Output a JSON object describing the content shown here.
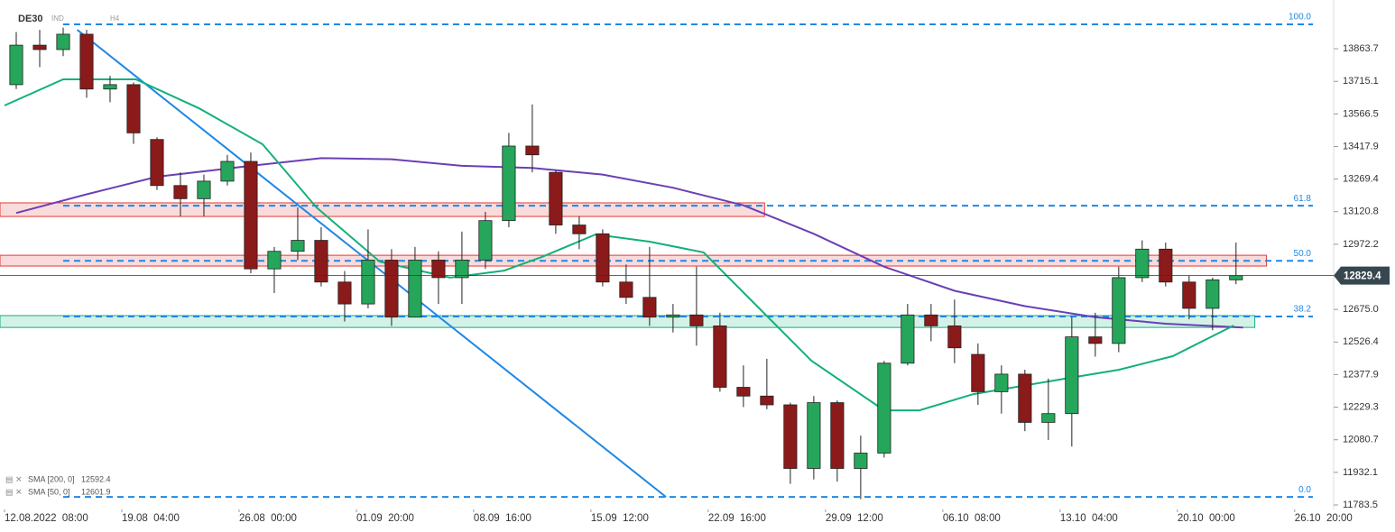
{
  "header": {
    "symbol": "DE30",
    "market": "IND",
    "interval": "H4"
  },
  "chart_data": {
    "type": "candlestick",
    "x": [
      0,
      1,
      2,
      3,
      4,
      5,
      6,
      7,
      8,
      9,
      10,
      11,
      12,
      13,
      14,
      15,
      16,
      17,
      18,
      19,
      20,
      21,
      22,
      23,
      24,
      25,
      26,
      27,
      28,
      29,
      30,
      31,
      32,
      33,
      34,
      35,
      36,
      37,
      38,
      39,
      40,
      41,
      42,
      43,
      44,
      45,
      46,
      47,
      48,
      49,
      50,
      51,
      52
    ],
    "open": [
      13700,
      13880,
      13860,
      13930,
      13680,
      13700,
      13450,
      13240,
      13180,
      13260,
      13350,
      12860,
      12940,
      12990,
      12800,
      12700,
      12900,
      12640,
      12900,
      12820,
      12900,
      13080,
      13420,
      13300,
      13060,
      13020,
      12800,
      12730,
      12640,
      12650,
      12600,
      12320,
      12280,
      12240,
      11950,
      12250,
      11950,
      12020,
      12430,
      12650,
      12600,
      12470,
      12300,
      12380,
      12160,
      12200,
      12550,
      12520,
      12820,
      12950,
      12800,
      12680,
      12810
    ],
    "high": [
      13940,
      13950,
      13960,
      13950,
      13740,
      13710,
      13460,
      13300,
      13290,
      13380,
      13390,
      12960,
      13140,
      13050,
      12850,
      13040,
      12950,
      12960,
      12940,
      13030,
      13120,
      13480,
      13610,
      13310,
      13100,
      13040,
      12880,
      12960,
      12700,
      12870,
      12660,
      12420,
      12450,
      12250,
      12280,
      12260,
      12100,
      12440,
      12700,
      12700,
      12720,
      12520,
      12420,
      12400,
      12360,
      12640,
      12660,
      12870,
      12990,
      12980,
      12830,
      12820,
      12980
    ],
    "low": [
      13680,
      13780,
      13830,
      13640,
      13620,
      13430,
      13220,
      13100,
      13100,
      13240,
      12840,
      12750,
      12900,
      12780,
      12620,
      12680,
      12600,
      12640,
      12700,
      12700,
      12860,
      13050,
      13300,
      13020,
      12950,
      12780,
      12700,
      12600,
      12570,
      12510,
      12300,
      12230,
      12220,
      11880,
      11900,
      11890,
      11810,
      12000,
      12420,
      12530,
      12430,
      12240,
      12200,
      12120,
      12080,
      12050,
      12460,
      12480,
      12800,
      12780,
      12630,
      12580,
      12790
    ],
    "close": [
      13880,
      13860,
      13930,
      13680,
      13700,
      13480,
      13240,
      13180,
      13260,
      13350,
      12860,
      12940,
      12990,
      12800,
      12700,
      12900,
      12640,
      12900,
      12820,
      12900,
      13080,
      13420,
      13380,
      13060,
      13020,
      12800,
      12730,
      12640,
      12650,
      12600,
      12320,
      12280,
      12240,
      11950,
      12250,
      11950,
      12020,
      12430,
      12650,
      12600,
      12500,
      12300,
      12380,
      12160,
      12200,
      12550,
      12520,
      12820,
      12950,
      12800,
      12680,
      12810,
      12829.4
    ],
    "up_color": "#26a65b",
    "down_color": "#8b1a1a",
    "lines": [
      {
        "name": "SMA [200, 0]",
        "value": 12592.4,
        "color": "#6a3fb5",
        "x": [
          0,
          3,
          6,
          10,
          13,
          16,
          19,
          22,
          25,
          28,
          31,
          34,
          37,
          40,
          43,
          46,
          49,
          52.3
        ],
        "values": [
          13115,
          13200,
          13280,
          13330,
          13365,
          13360,
          13330,
          13320,
          13290,
          13230,
          13150,
          13020,
          12870,
          12760,
          12690,
          12640,
          12610,
          12592.4
        ]
      },
      {
        "name": "SMA [50, 0]",
        "value": 12601.9,
        "color": "#13b07a",
        "x": [
          -0.5,
          2,
          5.1,
          7.8,
          10.5,
          12.8,
          15.5,
          18.5,
          20.8,
          22.4,
          24.7,
          27,
          29.3,
          31.6,
          33.9,
          37,
          38.5,
          40.8,
          44.7,
          47,
          49.3,
          51.9
        ],
        "values": [
          13605,
          13724,
          13724,
          13592,
          13428,
          13140,
          12893,
          12820,
          12852,
          12914,
          13017,
          12984,
          12935,
          12688,
          12441,
          12215,
          12215,
          12289,
          12359,
          12400,
          12462,
          12601.9
        ]
      }
    ],
    "trendline": {
      "color": "#1e88e5",
      "x": [
        2.6,
        27.7
      ],
      "values": [
        13950,
        11820
      ]
    },
    "fib_levels": [
      {
        "label": "100.0",
        "price": 13975
      },
      {
        "label": "61.8",
        "price": 13148
      },
      {
        "label": "50.0",
        "price": 12897
      },
      {
        "label": "38.2",
        "price": 12643
      },
      {
        "label": "0.0",
        "price": 11820
      }
    ],
    "zones": [
      {
        "color": "#e53935",
        "x": [
          -0.7,
          31.9
        ],
        "range": [
          13099,
          13161
        ]
      },
      {
        "color": "#e53935",
        "x": [
          -0.7,
          53.3
        ],
        "range": [
          12873,
          12922
        ]
      },
      {
        "color": "#13b07a",
        "x": [
          -0.7,
          52.8
        ],
        "range": [
          12593,
          12647
        ]
      }
    ],
    "xlim": [
      -0.5,
      56.2
    ],
    "ylim": [
      11763,
      14086
    ],
    "yticks": [
      11783.5,
      11932.1,
      12080.7,
      12229.3,
      12377.9,
      12526.4,
      {
        "value": 12675,
        "label": "12675.0"
      },
      12972.2,
      13120.8,
      13269.4,
      13417.9,
      13566.5,
      13715.1,
      13863.7
    ],
    "xticks": [
      {
        "value": 0,
        "label": "12.08.2022  08:00"
      },
      {
        "value": 5,
        "label": "19.08  04:00"
      },
      {
        "value": 10,
        "label": "26.08  00:00"
      },
      {
        "value": 15,
        "label": "01.09  20:00"
      },
      {
        "value": 20,
        "label": "08.09  16:00"
      },
      {
        "value": 25,
        "label": "15.09  12:00"
      },
      {
        "value": 30,
        "label": "22.09  16:00"
      },
      {
        "value": 35,
        "label": "29.09  12:00"
      },
      {
        "value": 40,
        "label": "06.10  08:00"
      },
      {
        "value": 45,
        "label": "13.10  04:00"
      },
      {
        "value": 50,
        "label": "20.10  00:00"
      },
      {
        "value": 55,
        "label": "26.10  20:00"
      }
    ]
  }
}
